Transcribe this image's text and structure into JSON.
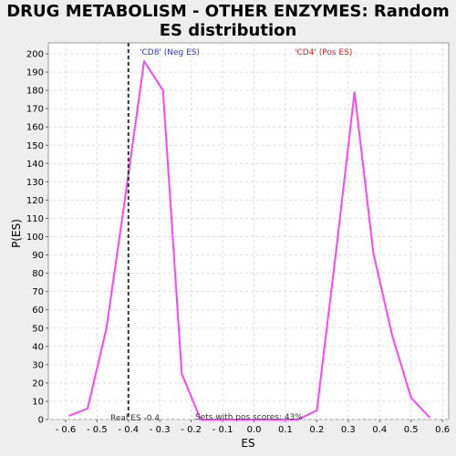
{
  "chart_data": {
    "type": "line",
    "title_line1": "DRUG METABOLISM - OTHER ENZYMES: Random",
    "title_line2": "ES distribution",
    "xlabel": "ES",
    "ylabel": "P(ES)",
    "xlim": [
      -0.655,
      0.62
    ],
    "ylim": [
      0,
      206
    ],
    "xticks": [
      -0.6,
      -0.5,
      -0.4,
      -0.3,
      -0.2,
      -0.1,
      0.0,
      0.1,
      0.2,
      0.3,
      0.4,
      0.5,
      0.6
    ],
    "xtick_labels": [
      "- 0.6",
      "- 0.5",
      "- 0.4",
      "- 0.3",
      "- 0.2",
      "- 0.1",
      "0.0",
      "0.1",
      "0.2",
      "0.3",
      "0.4",
      "0.5",
      "0.6"
    ],
    "yticks": [
      0,
      10,
      20,
      30,
      40,
      50,
      60,
      70,
      80,
      90,
      100,
      110,
      120,
      130,
      140,
      150,
      160,
      170,
      180,
      190,
      200
    ],
    "grid": true,
    "series": [
      {
        "color": "#ff44ff",
        "x": [
          -0.59,
          -0.53,
          -0.47,
          -0.41,
          -0.35,
          -0.29,
          -0.23,
          -0.17,
          -0.11,
          -0.05,
          0.02,
          0.08,
          0.14,
          0.2,
          0.26,
          0.32,
          0.38,
          0.44,
          0.5,
          0.56
        ],
        "y": [
          2,
          6,
          50,
          122,
          196,
          180,
          25,
          0,
          0,
          0,
          0,
          0,
          0,
          5,
          90,
          179,
          91,
          46,
          12,
          1
        ]
      }
    ],
    "real_es": -0.4,
    "annotations": {
      "neg_label": "'CD8' (Neg ES)",
      "pos_label": "'CD4' (Pos ES)",
      "real_es_label": "Real ES -0.4",
      "pos_scores_label": "Sets with pos scores: 43%"
    },
    "colors": {
      "neg_label": "#3333cc",
      "pos_label": "#dd2222",
      "annotation": "#333333",
      "real_es_line": "#333333",
      "grid": "#dddddd"
    }
  }
}
